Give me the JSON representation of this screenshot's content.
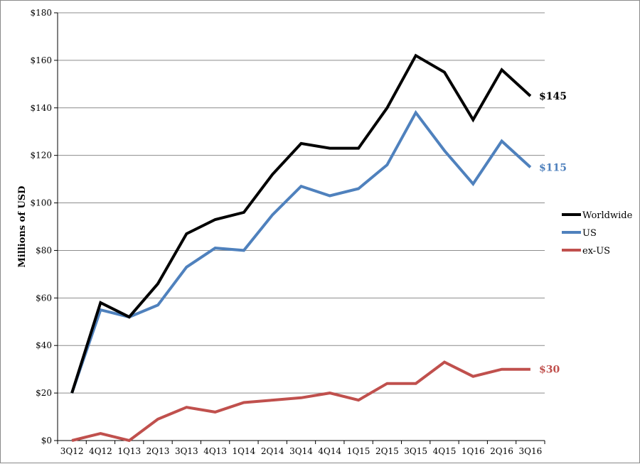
{
  "chart_data": {
    "type": "line",
    "ylabel": "Millions of USD",
    "ylim": [
      0,
      180
    ],
    "yticks": [
      "$0",
      "$20",
      "$40",
      "$60",
      "$80",
      "$100",
      "$120",
      "$140",
      "$160",
      "$180"
    ],
    "ytick_values": [
      0,
      20,
      40,
      60,
      80,
      100,
      120,
      140,
      160,
      180
    ],
    "categories": [
      "3Q12",
      "4Q12",
      "1Q13",
      "2Q13",
      "3Q13",
      "4Q13",
      "1Q14",
      "2Q14",
      "3Q14",
      "4Q14",
      "1Q15",
      "2Q15",
      "3Q15",
      "4Q15",
      "1Q16",
      "2Q16",
      "3Q16"
    ],
    "grid": true,
    "legend_position": "right",
    "series": [
      {
        "name": "Worldwide",
        "color": "#000000",
        "end_label": "$145",
        "values": [
          20,
          58,
          52,
          66,
          87,
          93,
          96,
          112,
          125,
          123,
          123,
          140,
          162,
          155,
          135,
          156,
          145
        ]
      },
      {
        "name": "US",
        "color": "#4f81bd",
        "end_label": "$115",
        "values": [
          20,
          55,
          52,
          57,
          73,
          81,
          80,
          95,
          107,
          103,
          106,
          116,
          138,
          122,
          108,
          126,
          115
        ]
      },
      {
        "name": "ex-US",
        "color": "#c0504d",
        "end_label": "$30",
        "values": [
          0,
          3,
          0,
          9,
          14,
          12,
          16,
          17,
          18,
          20,
          17,
          24,
          24,
          33,
          27,
          30,
          30
        ]
      }
    ]
  }
}
